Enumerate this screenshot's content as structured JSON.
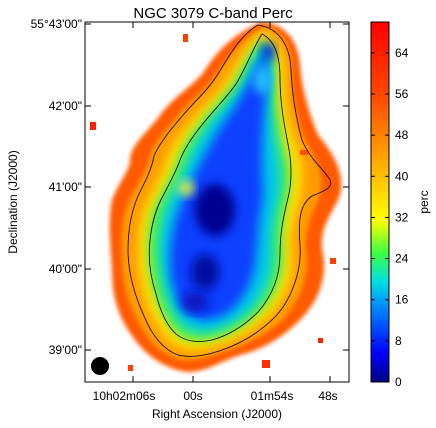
{
  "chart_data": {
    "type": "heatmap",
    "title": "NGC 3079   C-band   Perc",
    "xlabel": "Right Ascension (J2000)",
    "ylabel": "Declination (J2000)",
    "x_ticks": [
      "10h02m06s",
      "00s",
      "01m54s",
      "48s"
    ],
    "y_ticks": [
      "55°43'00\"",
      "42'00\"",
      "41'00\"",
      "40'00\"",
      "39'00\""
    ],
    "colorbar": {
      "label": "perc",
      "range": [
        0,
        70
      ],
      "ticks": [
        0,
        8,
        16,
        24,
        32,
        40,
        48,
        56,
        64
      ],
      "colors": [
        "#000080",
        "#0000ff",
        "#00a0ff",
        "#00e0c0",
        "#40ff40",
        "#ffff00",
        "#ffb000",
        "#ff6000",
        "#ff0000"
      ]
    },
    "beam": "filled-circle-lower-left",
    "contours": 2
  }
}
